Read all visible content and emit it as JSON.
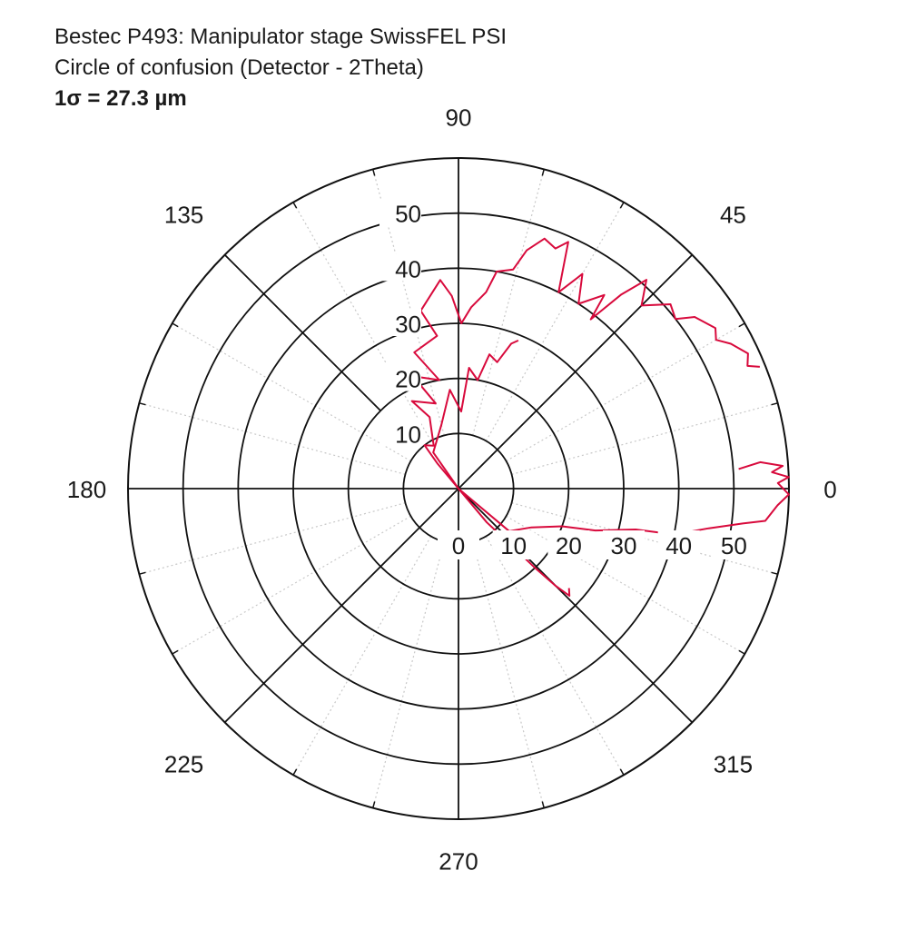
{
  "chart_data": {
    "type": "line",
    "projection": "polar",
    "title": "Bestec P493: Manipulator stage SwissFEL PSI",
    "subtitle": "Circle of confusion (Detector - 2Theta)",
    "annotation": "1σ = 27.3 µm",
    "angle_ticks": [
      "0",
      "45",
      "90",
      "135",
      "180",
      "225",
      "270",
      "315"
    ],
    "angle_tick_values": [
      0,
      45,
      90,
      135,
      180,
      225,
      270,
      315
    ],
    "radial_ticks": [
      "0",
      "10",
      "20",
      "30",
      "40",
      "50"
    ],
    "radial_tick_values": [
      0,
      10,
      20,
      30,
      40,
      50
    ],
    "rlim": [
      0,
      60
    ],
    "grid": true,
    "minor_angle_grid_step_deg": 15,
    "line_color": "#d80a3c",
    "series": [
      {
        "points": [
          [
            0,
            0
          ],
          [
            130,
            6
          ],
          [
            128,
            10
          ],
          [
            120,
            9
          ],
          [
            112,
            14
          ],
          [
            118,
            18
          ],
          [
            105,
            16
          ],
          [
            112,
            22
          ],
          [
            100,
            20
          ],
          [
            108,
            26
          ],
          [
            98,
            28
          ],
          [
            102,
            33
          ],
          [
            95,
            38
          ],
          [
            92,
            35
          ],
          [
            89,
            30
          ],
          [
            86,
            33
          ],
          [
            82,
            36
          ],
          [
            80,
            40
          ],
          [
            76,
            41
          ],
          [
            74,
            45
          ],
          [
            71,
            48
          ],
          [
            68,
            47
          ],
          [
            66,
            49
          ],
          [
            63,
            40
          ],
          [
            60,
            45
          ],
          [
            57,
            40
          ],
          [
            53,
            44
          ],
          [
            52,
            39
          ],
          [
            50,
            46
          ],
          [
            48,
            51
          ],
          [
            45,
            47
          ],
          [
            41,
            51
          ],
          [
            38,
            50
          ],
          [
            36,
            53
          ],
          [
            32,
            55
          ],
          [
            30,
            54
          ],
          [
            28,
            56
          ],
          [
            25,
            58
          ],
          [
            23,
            57
          ],
          [
            22,
            59
          ]
        ]
      },
      {
        "points": [
          [
            0,
            0
          ],
          [
            125,
            8
          ],
          [
            105,
            12
          ],
          [
            95,
            18
          ],
          [
            88,
            14
          ],
          [
            85,
            22
          ],
          [
            80,
            20
          ],
          [
            77,
            25
          ],
          [
            73,
            24
          ],
          [
            70,
            28
          ],
          [
            68,
            29
          ]
        ]
      },
      {
        "points": [
          [
            0,
            0
          ],
          [
            -40,
            12
          ],
          [
            -28,
            15
          ],
          [
            -20,
            20
          ],
          [
            -17,
            26
          ],
          [
            -13,
            33
          ],
          [
            -12,
            40
          ],
          [
            -9,
            46
          ],
          [
            -7,
            52
          ],
          [
            -6,
            56
          ],
          [
            -3,
            58
          ],
          [
            -1,
            60
          ],
          [
            1,
            58
          ],
          [
            2,
            60
          ],
          [
            3,
            57
          ],
          [
            4,
            59
          ],
          [
            5,
            55
          ],
          [
            4,
            51
          ]
        ]
      },
      {
        "points": [
          [
            0,
            0
          ],
          [
            -50,
            8
          ],
          [
            -47,
            14
          ],
          [
            -46,
            20
          ],
          [
            -45,
            25
          ],
          [
            -44,
            28
          ],
          [
            -42,
            27
          ]
        ]
      }
    ]
  }
}
